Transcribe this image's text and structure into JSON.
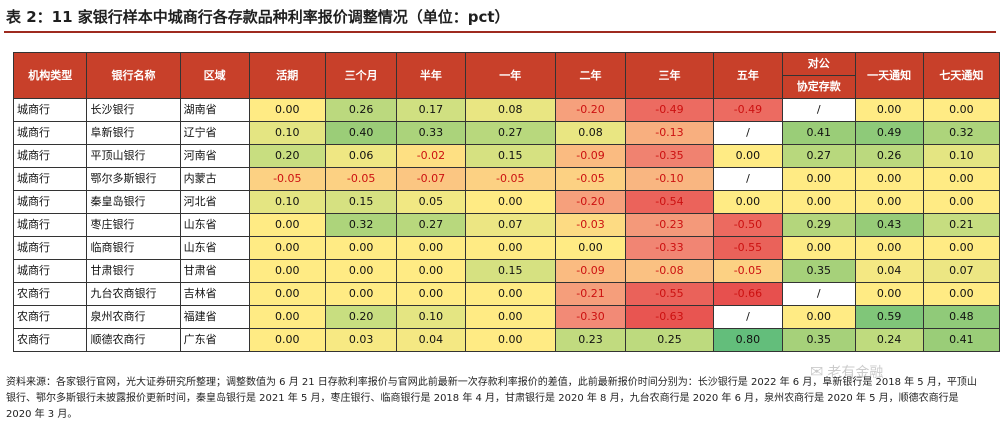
{
  "title": "表 2：11 家银行样本中城商行各存款品种利率报价调整情况（单位：pct）",
  "headers": [
    "机构类型",
    "银行名称",
    "区域",
    "活期",
    "三个月",
    "半年",
    "一年",
    "二年",
    "三年",
    "五年",
    "对公",
    "一天通知",
    "七天通知"
  ],
  "sub_header": "协定存款",
  "rows": [
    {
      "type": "城商行",
      "bank": "长沙银行",
      "region": "湖南省",
      "values": [
        "0.00",
        "0.26",
        "0.17",
        "0.08",
        "-0.20",
        "-0.49",
        "-0.49",
        "/",
        "0.00",
        "0.00"
      ]
    },
    {
      "type": "城商行",
      "bank": "阜新银行",
      "region": "辽宁省",
      "values": [
        "0.10",
        "0.40",
        "0.33",
        "0.27",
        "0.08",
        "-0.13",
        "/",
        "0.41",
        "0.49",
        "0.32"
      ]
    },
    {
      "type": "城商行",
      "bank": "平顶山银行",
      "region": "河南省",
      "values": [
        "0.20",
        "0.06",
        "-0.02",
        "0.15",
        "-0.09",
        "-0.35",
        "0.00",
        "0.27",
        "0.26",
        "0.10"
      ]
    },
    {
      "type": "城商行",
      "bank": "鄂尔多斯银行",
      "region": "内蒙古",
      "values": [
        "-0.05",
        "-0.05",
        "-0.07",
        "-0.05",
        "-0.05",
        "-0.10",
        "/",
        "0.00",
        "0.00",
        "0.00"
      ]
    },
    {
      "type": "城商行",
      "bank": "秦皇岛银行",
      "region": "河北省",
      "values": [
        "0.10",
        "0.15",
        "0.05",
        "0.00",
        "-0.20",
        "-0.54",
        "0.00",
        "0.00",
        "0.00",
        "0.00"
      ]
    },
    {
      "type": "城商行",
      "bank": "枣庄银行",
      "region": "山东省",
      "values": [
        "0.00",
        "0.32",
        "0.27",
        "0.07",
        "-0.03",
        "-0.23",
        "-0.50",
        "0.29",
        "0.43",
        "0.21"
      ]
    },
    {
      "type": "城商行",
      "bank": "临商银行",
      "region": "山东省",
      "values": [
        "0.00",
        "0.00",
        "0.00",
        "0.00",
        "0.00",
        "-0.33",
        "-0.55",
        "0.00",
        "0.00",
        "0.00"
      ]
    },
    {
      "type": "城商行",
      "bank": "甘肃银行",
      "region": "甘肃省",
      "values": [
        "0.00",
        "0.00",
        "0.00",
        "0.15",
        "-0.09",
        "-0.08",
        "-0.05",
        "0.35",
        "0.04",
        "0.07"
      ]
    },
    {
      "type": "农商行",
      "bank": "九台农商银行",
      "region": "吉林省",
      "values": [
        "0.00",
        "0.00",
        "0.00",
        "0.00",
        "-0.21",
        "-0.55",
        "-0.66",
        "/",
        "0.00",
        "0.00"
      ]
    },
    {
      "type": "农商行",
      "bank": "泉州农商行",
      "region": "福建省",
      "values": [
        "0.00",
        "0.20",
        "0.10",
        "0.00",
        "-0.30",
        "-0.63",
        "/",
        "0.00",
        "0.59",
        "0.48"
      ]
    },
    {
      "type": "农商行",
      "bank": "顺德农商行",
      "region": "广东省",
      "values": [
        "0.00",
        "0.03",
        "0.04",
        "0.00",
        "0.23",
        "0.25",
        "0.80",
        "0.35",
        "0.24",
        "0.41"
      ]
    }
  ],
  "note": "资料来源：各家银行官网，光大证券研究所整理；调整数值为 6 月 21 日存款利率报价与官网此前最新一次存款利率报价的差值，此前最新报价时间分别为：长沙银行是 2022 年 6 月，阜新银行是 2018 年 5 月，平顶山银行、鄂尔多斯银行未披露报价更新时间，秦皇岛银行是 2021 年 5 月，枣庄银行、临商银行是 2018 年 4 月，甘肃银行是 2020 年 8 月，九台农商行是 2020 年 6 月，泉州农商行是 2020 年 5 月，顺德农商行是 2020 年 3 月。",
  "watermark": "老有金融"
}
